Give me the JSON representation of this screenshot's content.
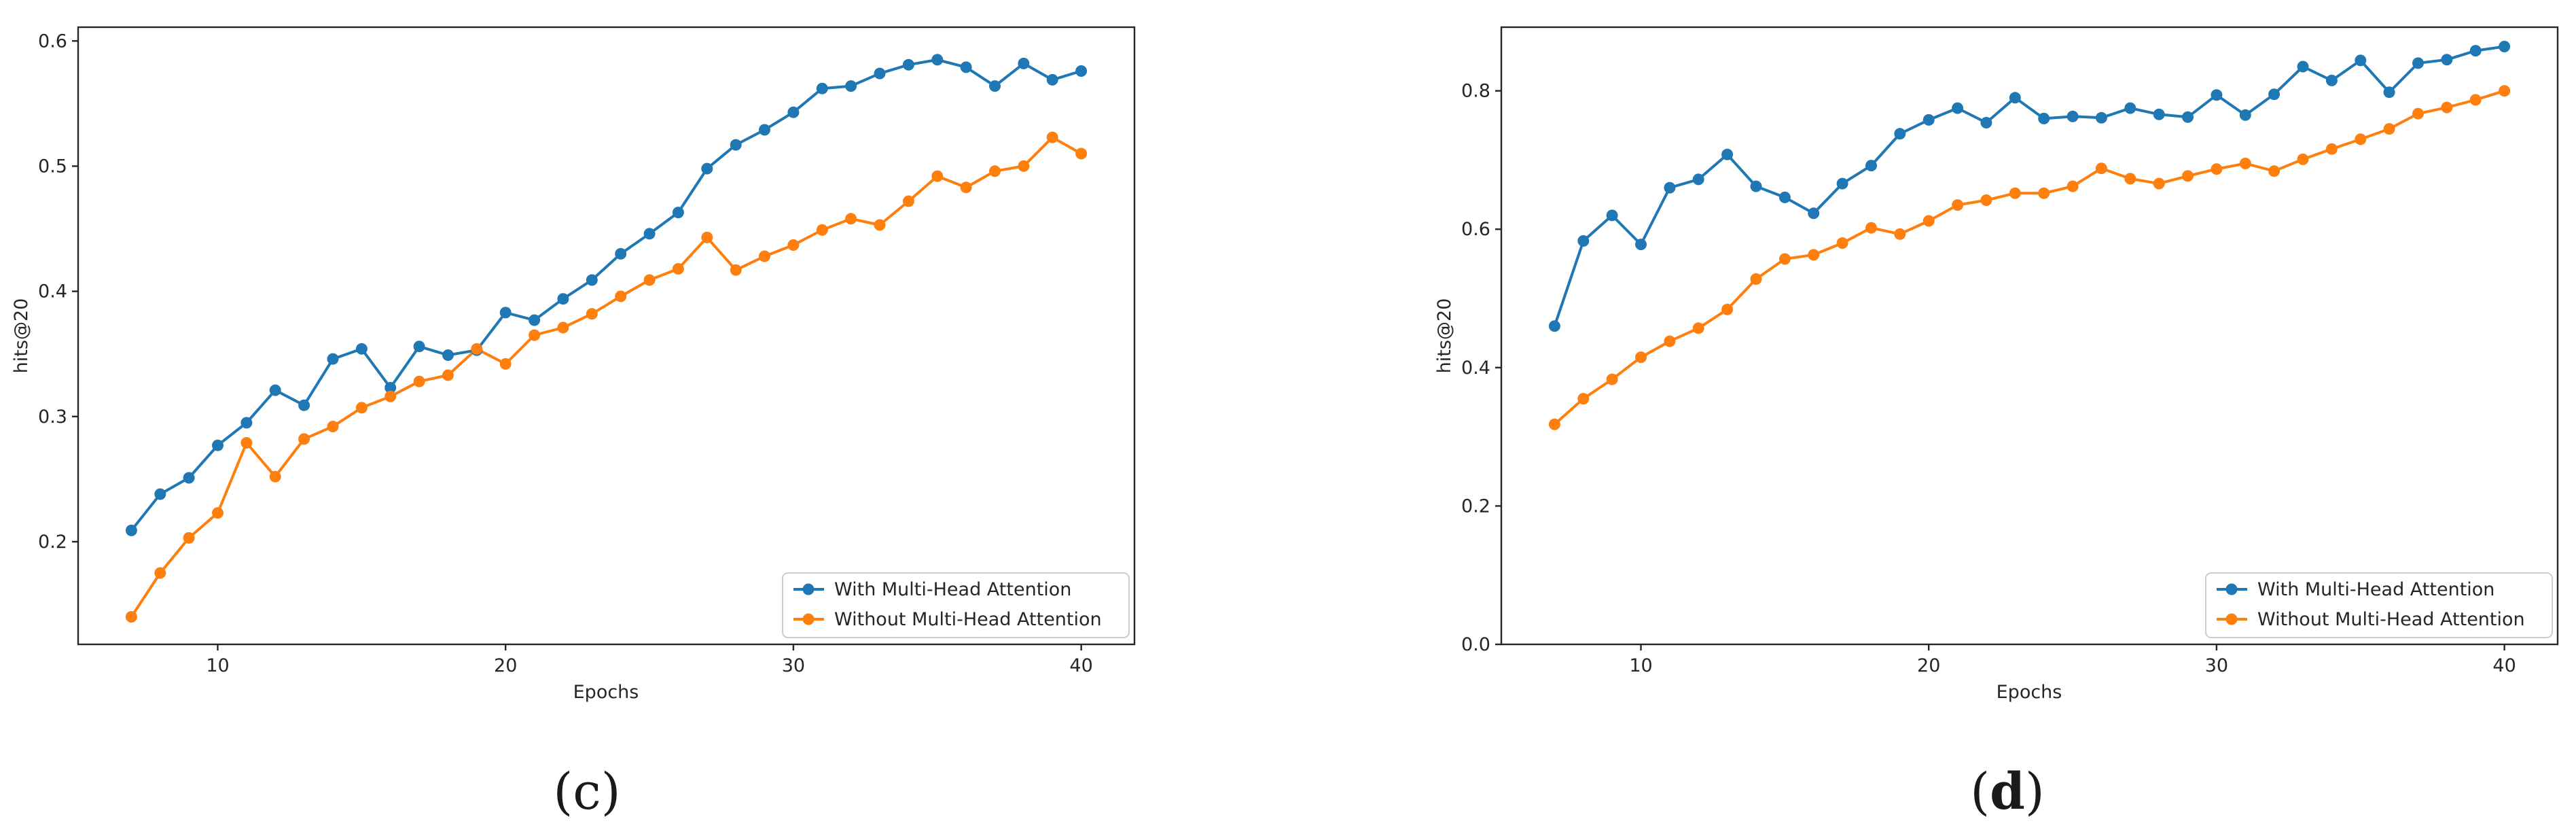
{
  "colors": {
    "series1": "#1f77b4",
    "series2": "#ff7f0e"
  },
  "panels": [
    {
      "caption_open": "(",
      "caption_letter": "c",
      "caption_close": ")"
    },
    {
      "caption_open": "(",
      "caption_letter": "d",
      "caption_close": ")"
    }
  ],
  "chart_data": [
    {
      "type": "line",
      "title": "",
      "xlabel": "Epochs",
      "ylabel": "hits@20",
      "xlim": [
        5.15,
        41.85
      ],
      "ylim": [
        0.118,
        0.611
      ],
      "xticks": [
        10,
        20,
        30,
        40
      ],
      "yticks": [
        0.2,
        0.3,
        0.4,
        0.5,
        0.6
      ],
      "ytick_labels": [
        "0.2",
        "0.3",
        "0.4",
        "0.5",
        "0.6"
      ],
      "legend_position": "lower-right",
      "x": [
        7,
        8,
        9,
        10,
        11,
        12,
        13,
        14,
        15,
        16,
        17,
        18,
        19,
        20,
        21,
        22,
        23,
        24,
        25,
        26,
        27,
        28,
        29,
        30,
        31,
        32,
        33,
        34,
        35,
        36,
        37,
        38,
        39,
        40
      ],
      "series": [
        {
          "name": "With Multi-Head Attention",
          "values": [
            0.209,
            0.238,
            0.251,
            0.277,
            0.295,
            0.321,
            0.309,
            0.346,
            0.354,
            0.323,
            0.356,
            0.349,
            0.353,
            0.383,
            0.377,
            0.394,
            0.409,
            0.43,
            0.446,
            0.463,
            0.498,
            0.517,
            0.529,
            0.543,
            0.562,
            0.564,
            0.574,
            0.581,
            0.585,
            0.579,
            0.564,
            0.582,
            0.569,
            0.576
          ]
        },
        {
          "name": "Without Multi-Head Attention",
          "values": [
            0.14,
            0.175,
            0.203,
            0.223,
            0.279,
            0.252,
            0.282,
            0.292,
            0.307,
            0.316,
            0.328,
            0.333,
            0.354,
            0.342,
            0.365,
            0.371,
            0.382,
            0.396,
            0.409,
            0.418,
            0.443,
            0.417,
            0.428,
            0.437,
            0.449,
            0.458,
            0.453,
            0.472,
            0.492,
            0.483,
            0.496,
            0.5,
            0.523,
            0.51
          ]
        }
      ]
    },
    {
      "type": "line",
      "title": "",
      "xlabel": "Epochs",
      "ylabel": "hits@20",
      "xlim": [
        5.15,
        41.85
      ],
      "ylim": [
        0.0,
        0.892
      ],
      "xticks": [
        10,
        20,
        30,
        40
      ],
      "yticks": [
        0.0,
        0.2,
        0.4,
        0.6,
        0.8
      ],
      "ytick_labels": [
        "0.0",
        "0.2",
        "0.4",
        "0.6",
        "0.8"
      ],
      "legend_position": "lower-right",
      "x": [
        7,
        8,
        9,
        10,
        11,
        12,
        13,
        14,
        15,
        16,
        17,
        18,
        19,
        20,
        21,
        22,
        23,
        24,
        25,
        26,
        27,
        28,
        29,
        30,
        31,
        32,
        33,
        34,
        35,
        36,
        37,
        38,
        39,
        40
      ],
      "series": [
        {
          "name": "With Multi-Head Attention",
          "values": [
            0.46,
            0.583,
            0.62,
            0.578,
            0.66,
            0.672,
            0.708,
            0.662,
            0.646,
            0.623,
            0.666,
            0.692,
            0.738,
            0.758,
            0.775,
            0.754,
            0.79,
            0.76,
            0.763,
            0.761,
            0.775,
            0.766,
            0.762,
            0.794,
            0.765,
            0.795,
            0.835,
            0.815,
            0.844,
            0.798,
            0.84,
            0.845,
            0.858,
            0.864
          ]
        },
        {
          "name": "Without Multi-Head Attention",
          "values": [
            0.318,
            0.355,
            0.383,
            0.415,
            0.438,
            0.457,
            0.484,
            0.528,
            0.557,
            0.563,
            0.58,
            0.602,
            0.593,
            0.612,
            0.635,
            0.642,
            0.652,
            0.652,
            0.662,
            0.688,
            0.673,
            0.666,
            0.677,
            0.687,
            0.695,
            0.684,
            0.701,
            0.716,
            0.73,
            0.745,
            0.767,
            0.776,
            0.787,
            0.8
          ]
        }
      ]
    }
  ]
}
